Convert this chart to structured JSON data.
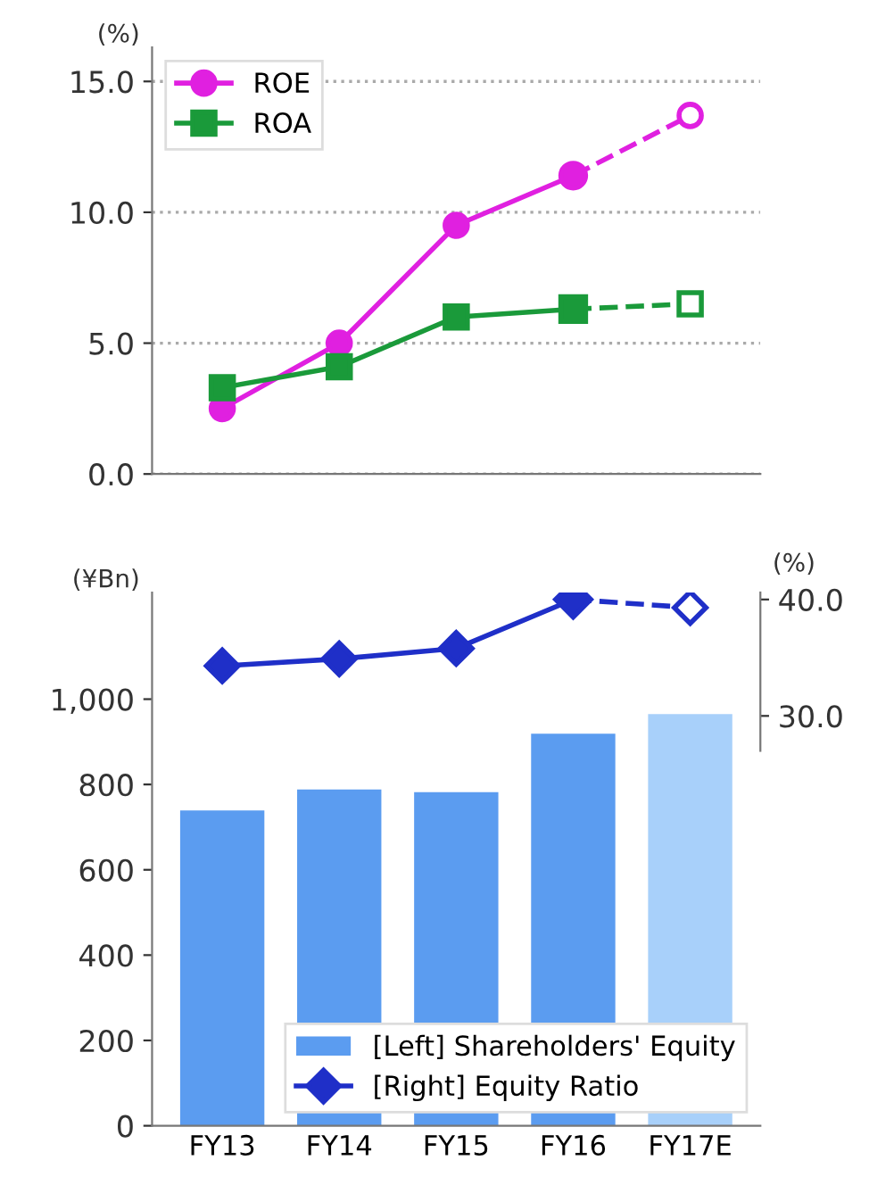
{
  "chart_data": [
    {
      "type": "line",
      "ylabel": "(%)",
      "categories": [
        null,
        null,
        null,
        null,
        null
      ],
      "ylim": [
        0,
        16.3
      ],
      "yticks": [
        {
          "value": 0,
          "label": "0.0"
        },
        {
          "value": 5,
          "label": "5.0"
        },
        {
          "value": 10,
          "label": "10.0"
        },
        {
          "value": 15,
          "label": "15.0"
        }
      ],
      "grid": "y",
      "legend": "top left",
      "tick_labels": "y",
      "series": [
        {
          "name": "ROE",
          "color": "#e020e0",
          "marker": "circle",
          "line_style": "solid",
          "values": [
            2.5,
            5.0,
            9.5,
            11.4,
            null
          ]
        },
        {
          "color": "#e020e0",
          "marker": "circle",
          "line_style": "dashed",
          "values": [
            null,
            null,
            null,
            11.4,
            13.7
          ]
        },
        {
          "name": "ROA",
          "color": "#1a9a3a",
          "marker": "square",
          "line_style": "solid",
          "values": [
            3.3,
            4.1,
            6.0,
            6.3,
            null
          ]
        },
        {
          "color": "#1a9a3a",
          "marker": "square",
          "line_style": "dashed",
          "values": [
            null,
            null,
            null,
            6.3,
            6.5
          ]
        }
      ]
    },
    {
      "type": "bar",
      "ylabel": "(¥Bn)",
      "y2label": "(%)",
      "categories": [
        "FY13",
        "FY14",
        "FY15",
        "FY16",
        "FY17E"
      ],
      "ylim": [
        0,
        1250
      ],
      "yticks": [
        0,
        200,
        400,
        600,
        800,
        {
          "value": 1000,
          "label": "1,000"
        }
      ],
      "y2lim": [
        -5.2,
        40.6
      ],
      "y2ticks": [
        {
          "value": 30,
          "label": "30.0"
        },
        {
          "value": 40,
          "label": "40.0"
        }
      ],
      "legend": "bottom right",
      "series": [
        {
          "name": "[Left] Shareholders' Equity",
          "type": "bar",
          "color": "#5b9cf0",
          "colors": [
            "#5b9cf0",
            "#5b9cf0",
            "#5b9cf0",
            "#5b9cf0",
            "#a8d0fa"
          ],
          "values": [
            739,
            788,
            782,
            919,
            965
          ]
        },
        {
          "name": "[Right] Equity Ratio",
          "type": "line",
          "axis": "y2",
          "color": "#1f2fc8",
          "marker": "diamond",
          "line_style": "solid",
          "values": [
            34.3,
            34.9,
            35.8,
            40.0,
            null
          ]
        },
        {
          "type": "line",
          "axis": "y2",
          "color": "#1f2fc8",
          "marker": "diamond",
          "line_style": "dashed",
          "values": [
            null,
            null,
            null,
            40.0,
            39.3
          ]
        }
      ]
    }
  ]
}
